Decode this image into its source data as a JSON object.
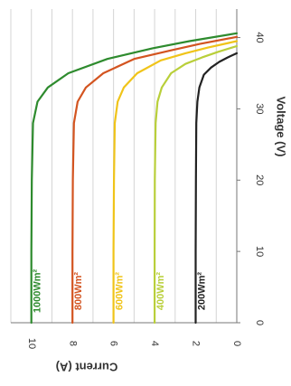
{
  "chart_data": {
    "type": "line",
    "xlabel": "Voltage (V)",
    "ylabel": "Current (A)",
    "xlim": [
      0,
      44
    ],
    "ylim": [
      0,
      11
    ],
    "xticks": [
      0,
      10,
      20,
      30,
      40
    ],
    "yticks": [
      0,
      2,
      4,
      6,
      8,
      10
    ],
    "grid": true,
    "series": [
      {
        "name": "1000Wm²",
        "color": "#2e8b2e",
        "isc": 10.0,
        "voc": 40.6,
        "x": [
          0,
          10,
          20,
          28,
          31,
          33,
          35,
          37,
          38.5,
          39.5,
          40.6
        ],
        "y": [
          10.0,
          10.0,
          9.98,
          9.92,
          9.7,
          9.2,
          8.2,
          6.3,
          4.1,
          2.3,
          0
        ]
      },
      {
        "name": "800Wm²",
        "color": "#d35420",
        "isc": 8.0,
        "voc": 40.1,
        "x": [
          0,
          10,
          20,
          28,
          31,
          33,
          35,
          37,
          38.2,
          39.1,
          40.1
        ],
        "y": [
          8.0,
          8.0,
          7.98,
          7.93,
          7.75,
          7.35,
          6.5,
          5.0,
          3.2,
          1.8,
          0
        ]
      },
      {
        "name": "600Wm²",
        "color": "#f0c419",
        "isc": 6.0,
        "voc": 39.5,
        "x": [
          0,
          10,
          20,
          28,
          31,
          33,
          35,
          36.8,
          37.8,
          38.6,
          39.5
        ],
        "y": [
          6.0,
          6.0,
          5.98,
          5.94,
          5.8,
          5.5,
          4.85,
          3.7,
          2.5,
          1.4,
          0
        ]
      },
      {
        "name": "400Wm²",
        "color": "#b9cf3a",
        "isc": 4.0,
        "voc": 38.8,
        "x": [
          0,
          10,
          20,
          28,
          31,
          33,
          35,
          36.3,
          37.2,
          38.0,
          38.8
        ],
        "y": [
          4.0,
          4.0,
          3.99,
          3.95,
          3.86,
          3.65,
          3.2,
          2.5,
          1.7,
          0.9,
          0
        ]
      },
      {
        "name": "200Wm²",
        "color": "#222222",
        "isc": 2.0,
        "voc": 37.8,
        "x": [
          0,
          10,
          20,
          28,
          31,
          33,
          34.8,
          35.8,
          36.6,
          37.2,
          37.8
        ],
        "y": [
          2.0,
          2.0,
          1.99,
          1.97,
          1.92,
          1.82,
          1.6,
          1.25,
          0.85,
          0.45,
          0
        ]
      }
    ]
  }
}
